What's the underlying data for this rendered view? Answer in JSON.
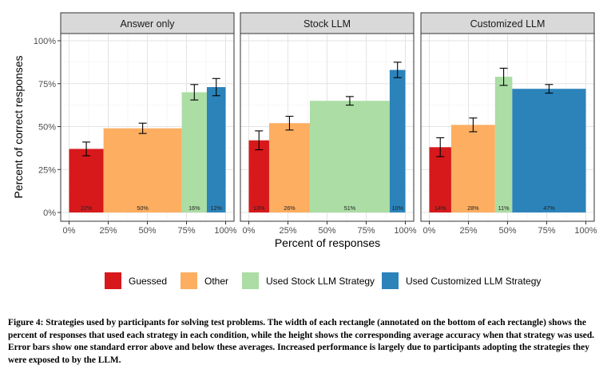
{
  "chart_data": {
    "type": "bar",
    "title": "",
    "xlabel": "Percent of responses",
    "ylabel": "Percent of correct responses",
    "xlim": [
      0,
      100
    ],
    "ylim": [
      0,
      100
    ],
    "x_ticks": [
      "0%",
      "25%",
      "50%",
      "75%",
      "100%"
    ],
    "y_ticks": [
      "0%",
      "25%",
      "50%",
      "75%",
      "100%"
    ],
    "grid": true,
    "legend_position": "bottom",
    "series": [
      {
        "name": "Guessed",
        "color": "#d7191c"
      },
      {
        "name": "Other",
        "color": "#fdae61"
      },
      {
        "name": "Used Stock LLM Strategy",
        "color": "#abdda4"
      },
      {
        "name": "Used Customized LLM Strategy",
        "color": "#2b83ba"
      }
    ],
    "panels": [
      {
        "title": "Answer only",
        "bars": [
          {
            "series": "Guessed",
            "width": 22,
            "accuracy": 37,
            "se": 4,
            "label": "22%"
          },
          {
            "series": "Other",
            "width": 50,
            "accuracy": 49,
            "se": 3,
            "label": "50%"
          },
          {
            "series": "Used Stock LLM Strategy",
            "width": 16,
            "accuracy": 70,
            "se": 4.5,
            "label": "16%"
          },
          {
            "series": "Used Customized LLM Strategy",
            "width": 12,
            "accuracy": 73,
            "se": 5,
            "label": "12%"
          }
        ]
      },
      {
        "title": "Stock LLM",
        "bars": [
          {
            "series": "Guessed",
            "width": 13,
            "accuracy": 42,
            "se": 5.5,
            "label": "13%"
          },
          {
            "series": "Other",
            "width": 26,
            "accuracy": 52,
            "se": 4,
            "label": "26%"
          },
          {
            "series": "Used Stock LLM Strategy",
            "width": 51,
            "accuracy": 65,
            "se": 2.5,
            "label": "51%"
          },
          {
            "series": "Used Customized LLM Strategy",
            "width": 10,
            "accuracy": 83,
            "se": 4.5,
            "label": "10%"
          }
        ]
      },
      {
        "title": "Customized LLM",
        "bars": [
          {
            "series": "Guessed",
            "width": 14,
            "accuracy": 38,
            "se": 5.5,
            "label": "14%"
          },
          {
            "series": "Other",
            "width": 28,
            "accuracy": 51,
            "se": 4,
            "label": "28%"
          },
          {
            "series": "Used Stock LLM Strategy",
            "width": 11,
            "accuracy": 79,
            "se": 5,
            "label": "11%"
          },
          {
            "series": "Used Customized LLM Strategy",
            "width": 47,
            "accuracy": 72,
            "se": 2.5,
            "label": "47%"
          }
        ]
      }
    ]
  },
  "caption": {
    "bold": "Figure 4: Strategies used by participants for solving test problems. The width of each rectangle (annotated on the bottom of each rectangle) shows the percent of responses that used each strategy in each condition, while the height shows the corresponding average accuracy when that strategy was used. Error bars show one standard error above and below these averages. Increased performance is largely due to participants adopting the strategies they were exposed to by the LLM."
  }
}
